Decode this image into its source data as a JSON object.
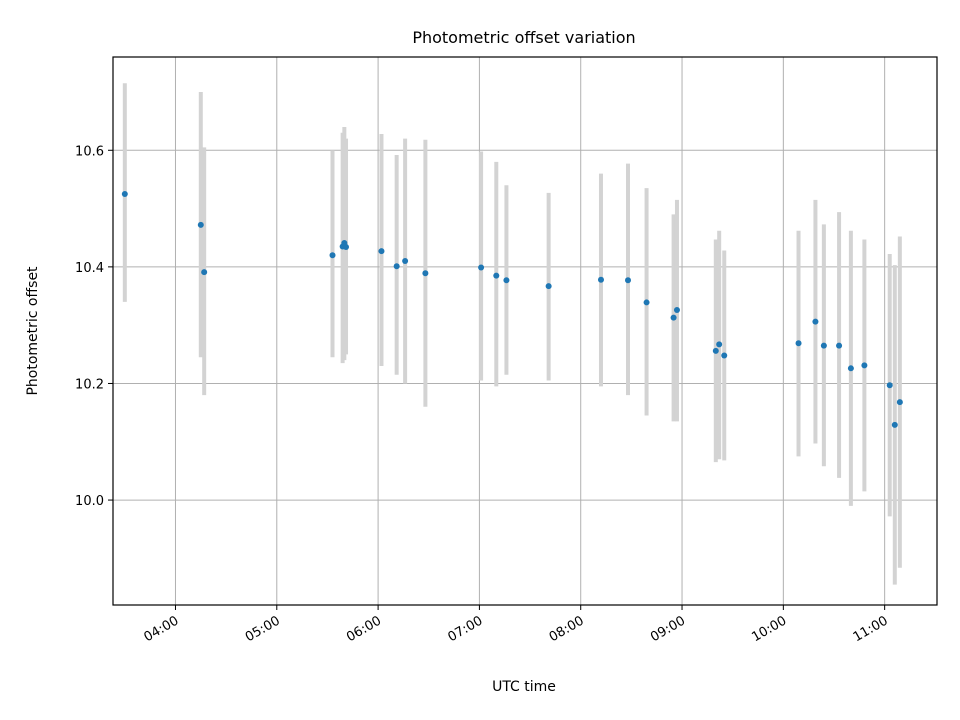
{
  "chart_data": {
    "type": "scatter",
    "title": "Photometric offset variation",
    "xlabel": "UTC time",
    "ylabel": "Photometric offset",
    "xlim": [
      "03:23",
      "11:31"
    ],
    "ylim": [
      9.82,
      10.76
    ],
    "grid": true,
    "x_ticks": [
      "04:00",
      "05:00",
      "06:00",
      "07:00",
      "08:00",
      "09:00",
      "10:00",
      "11:00"
    ],
    "y_ticks": [
      "10.0",
      "10.2",
      "10.4",
      "10.6"
    ],
    "colors": {
      "point": "#1f77b4",
      "errorbar": "#d3d3d3",
      "grid": "#b0b0b0"
    },
    "series": [
      {
        "points": [
          {
            "t": "03:30",
            "y": 10.525,
            "lo": 10.34,
            "hi": 10.715
          },
          {
            "t": "04:15",
            "y": 10.472,
            "lo": 10.245,
            "hi": 10.7
          },
          {
            "t": "04:17",
            "y": 10.391,
            "lo": 10.18,
            "hi": 10.605
          },
          {
            "t": "05:33",
            "y": 10.42,
            "lo": 10.245,
            "hi": 10.6
          },
          {
            "t": "05:39",
            "y": 10.435,
            "lo": 10.235,
            "hi": 10.63
          },
          {
            "t": "05:40",
            "y": 10.441,
            "lo": 10.24,
            "hi": 10.64
          },
          {
            "t": "05:41",
            "y": 10.434,
            "lo": 10.25,
            "hi": 10.62
          },
          {
            "t": "06:02",
            "y": 10.427,
            "lo": 10.23,
            "hi": 10.628
          },
          {
            "t": "06:11",
            "y": 10.401,
            "lo": 10.215,
            "hi": 10.592
          },
          {
            "t": "06:16",
            "y": 10.41,
            "lo": 10.2,
            "hi": 10.62
          },
          {
            "t": "06:28",
            "y": 10.389,
            "lo": 10.16,
            "hi": 10.618
          },
          {
            "t": "07:01",
            "y": 10.399,
            "lo": 10.205,
            "hi": 10.598
          },
          {
            "t": "07:10",
            "y": 10.385,
            "lo": 10.195,
            "hi": 10.58
          },
          {
            "t": "07:16",
            "y": 10.377,
            "lo": 10.215,
            "hi": 10.54
          },
          {
            "t": "07:41",
            "y": 10.367,
            "lo": 10.205,
            "hi": 10.527
          },
          {
            "t": "08:12",
            "y": 10.378,
            "lo": 10.195,
            "hi": 10.56
          },
          {
            "t": "08:28",
            "y": 10.377,
            "lo": 10.18,
            "hi": 10.577
          },
          {
            "t": "08:39",
            "y": 10.339,
            "lo": 10.145,
            "hi": 10.535
          },
          {
            "t": "08:55",
            "y": 10.313,
            "lo": 10.135,
            "hi": 10.49
          },
          {
            "t": "08:57",
            "y": 10.326,
            "lo": 10.135,
            "hi": 10.515
          },
          {
            "t": "09:20",
            "y": 10.256,
            "lo": 10.065,
            "hi": 10.447
          },
          {
            "t": "09:22",
            "y": 10.267,
            "lo": 10.07,
            "hi": 10.462
          },
          {
            "t": "09:25",
            "y": 10.248,
            "lo": 10.068,
            "hi": 10.428
          },
          {
            "t": "10:09",
            "y": 10.269,
            "lo": 10.075,
            "hi": 10.462
          },
          {
            "t": "10:19",
            "y": 10.306,
            "lo": 10.097,
            "hi": 10.515
          },
          {
            "t": "10:24",
            "y": 10.265,
            "lo": 10.058,
            "hi": 10.473
          },
          {
            "t": "10:33",
            "y": 10.265,
            "lo": 10.038,
            "hi": 10.494
          },
          {
            "t": "10:40",
            "y": 10.226,
            "lo": 9.99,
            "hi": 10.462
          },
          {
            "t": "10:48",
            "y": 10.231,
            "lo": 10.015,
            "hi": 10.447
          },
          {
            "t": "11:03",
            "y": 10.197,
            "lo": 9.972,
            "hi": 10.422
          },
          {
            "t": "11:06",
            "y": 10.129,
            "lo": 9.855,
            "hi": 10.403
          },
          {
            "t": "11:09",
            "y": 10.168,
            "lo": 9.884,
            "hi": 10.452
          }
        ]
      }
    ]
  }
}
